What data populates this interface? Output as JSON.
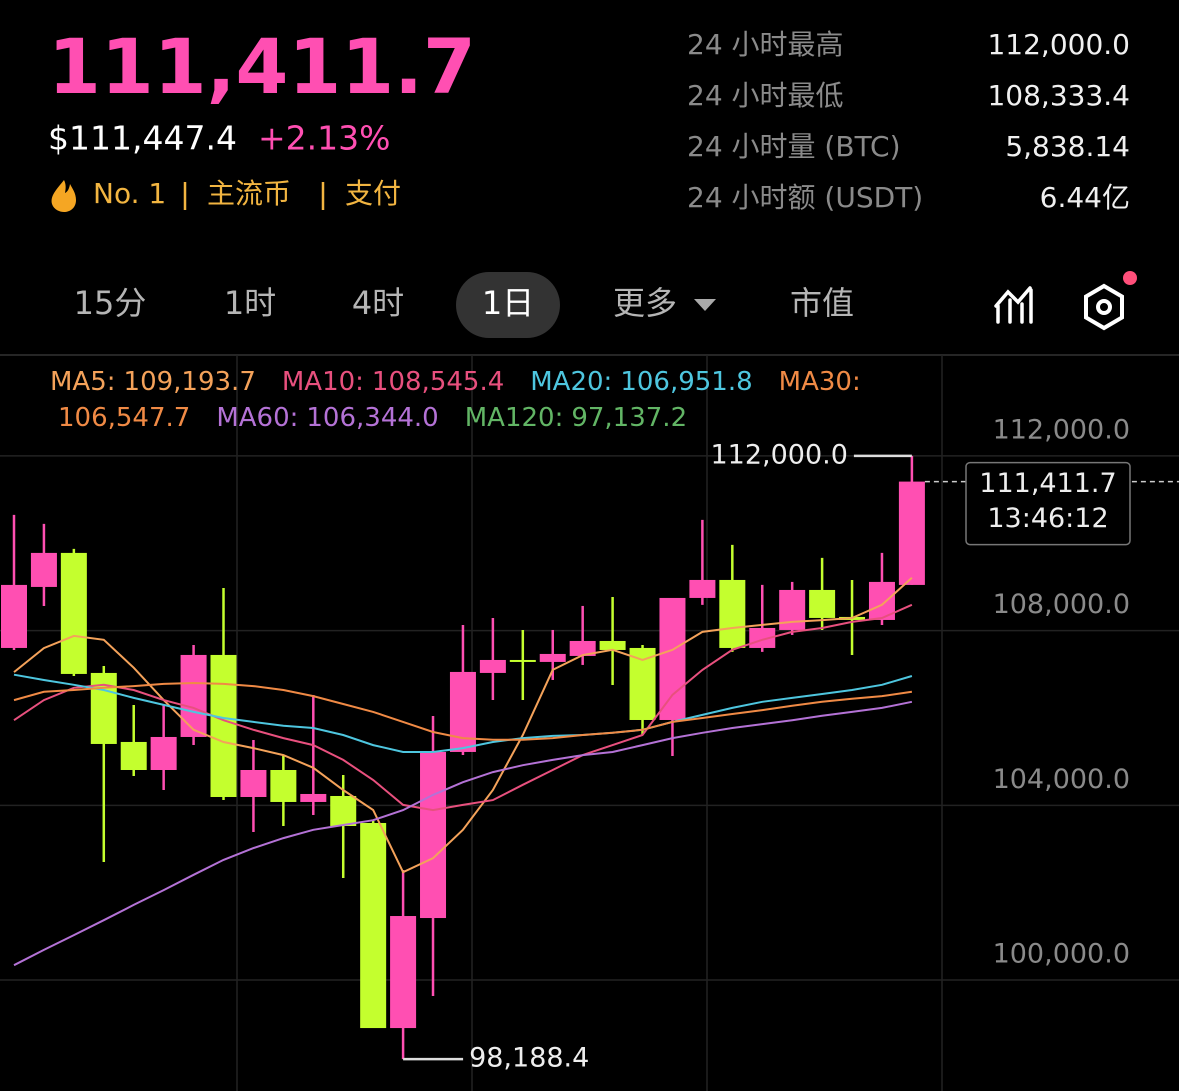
{
  "header": {
    "price": "111,411.7",
    "usd_price": "$111,447.4",
    "change": "+2.13%",
    "rank": "No. 1",
    "tags": [
      "主流币",
      "支付"
    ]
  },
  "stats": [
    {
      "label": "24 小时最高",
      "value": "112,000.0"
    },
    {
      "label": "24 小时最低",
      "value": "108,333.4"
    },
    {
      "label": "24 小时量 (BTC)",
      "value": "5,838.14"
    },
    {
      "label": "24 小时额 (USDT)",
      "value": "6.44亿"
    }
  ],
  "tabs": [
    "15分",
    "1时",
    "4时",
    "1日",
    "更多",
    "市值"
  ],
  "active_tab": 3,
  "chart_data": {
    "type": "candlestick",
    "ylim": [
      97460,
      114310
    ],
    "yticks": [
      {
        "value": 100000,
        "label": "100,000.0"
      },
      {
        "value": 104000,
        "label": "104,000.0"
      },
      {
        "value": 108000,
        "label": "108,000.0"
      },
      {
        "value": 112000,
        "label": "112,000.0"
      }
    ],
    "grid": true,
    "up_color": "#ff4fb2",
    "down_color": "#c4ff2e",
    "candles": {
      "open": [
        107603,
        109000,
        109779,
        107031,
        105451,
        104809,
        105565,
        107443,
        104191,
        104809,
        104077,
        104214,
        103596,
        98901,
        101420,
        105222,
        107031,
        107328,
        107283,
        107420,
        107763,
        107603,
        105954,
        108748,
        109160,
        107603,
        108015,
        108931,
        108313,
        108244,
        109046
      ],
      "high": [
        110649,
        110443,
        109870,
        107191,
        106298,
        106298,
        107672,
        108977,
        105496,
        105153,
        106527,
        104695,
        103664,
        102519,
        106046,
        108130,
        108290,
        108015,
        108015,
        108565,
        108771,
        107672,
        108748,
        110534,
        109962,
        109046,
        109115,
        109664,
        109160,
        109779,
        112000
      ],
      "low": [
        107557,
        108565,
        106962,
        102703,
        104672,
        104351,
        105382,
        104122,
        103390,
        103527,
        103779,
        102336,
        98901,
        98188.4,
        99634,
        105153,
        106412,
        106412,
        106870,
        107214,
        106756,
        105611,
        105130,
        108588,
        107512,
        107512,
        107901,
        108015,
        107443,
        108130,
        109046
      ],
      "close": [
        109046,
        109779,
        107008,
        105405,
        104809,
        105565,
        107443,
        104191,
        104809,
        104077,
        104260,
        103527,
        98901,
        101466,
        105222,
        107054,
        107328,
        107283,
        107466,
        107763,
        107557,
        105954,
        108748,
        109160,
        107603,
        108061,
        108931,
        108290,
        108244,
        109115,
        111411.7
      ]
    },
    "ma_lines": [
      {
        "name": "MA5:",
        "value_label": "109,193.7",
        "color": "#f4a25a",
        "values": [
          107050,
          107600,
          107880,
          107790,
          107150,
          106410,
          105730,
          105450,
          105310,
          105150,
          104860,
          104350,
          103890,
          102470,
          102790,
          103440,
          104350,
          105610,
          107100,
          107440,
          107560,
          107330,
          107560,
          107970,
          108060,
          108130,
          108200,
          108240,
          108290,
          108590,
          109210
        ]
      },
      {
        "name": "MA10:",
        "value_label": "108,545.4",
        "color": "#e8507e",
        "values": [
          105950,
          106410,
          106690,
          106760,
          106640,
          106410,
          106230,
          105950,
          105730,
          105540,
          105380,
          105040,
          104580,
          104010,
          103890,
          104010,
          104120,
          104470,
          104810,
          105150,
          105380,
          105610,
          106530,
          107100,
          107560,
          107790,
          107970,
          108060,
          108200,
          108290,
          108590
        ]
      },
      {
        "name": "MA20:",
        "value_label": "106,951.8",
        "color": "#4ec6df",
        "values": [
          106990,
          106870,
          106760,
          106640,
          106460,
          106300,
          106140,
          106000,
          105910,
          105820,
          105770,
          105610,
          105380,
          105220,
          105220,
          105310,
          105450,
          105540,
          105590,
          105610,
          105660,
          105730,
          105910,
          106070,
          106230,
          106370,
          106460,
          106550,
          106640,
          106760,
          106960
        ]
      },
      {
        "name": "MA30:",
        "value_label": "106,547.7",
        "color": "#f08a45",
        "values": [
          106410,
          106600,
          106640,
          106690,
          106730,
          106780,
          106800,
          106780,
          106730,
          106640,
          106500,
          106320,
          106140,
          105910,
          105680,
          105540,
          105500,
          105500,
          105540,
          105610,
          105660,
          105730,
          105910,
          106000,
          106090,
          106180,
          106280,
          106370,
          106440,
          106500,
          106600
        ]
      },
      {
        "name": "MA60:",
        "value_label": "106,344.0",
        "color": "#b472d6",
        "values": [
          100340,
          100690,
          101030,
          101370,
          101720,
          102060,
          102410,
          102750,
          103020,
          103250,
          103440,
          103550,
          103660,
          103890,
          104240,
          104530,
          104760,
          104920,
          105040,
          105150,
          105220,
          105380,
          105540,
          105660,
          105770,
          105860,
          105950,
          106050,
          106140,
          106230,
          106370
        ]
      },
      {
        "name": "MA120:",
        "value_label": "97,137.2",
        "color": "#62b565",
        "values": []
      }
    ],
    "annotations": [
      {
        "value": 112000,
        "label": "112,000.0"
      },
      {
        "value": 98188.4,
        "label": "98,188.4"
      }
    ],
    "last_price": {
      "value": 111411.7,
      "label": "111,411.7",
      "time": "13:46:12"
    }
  }
}
